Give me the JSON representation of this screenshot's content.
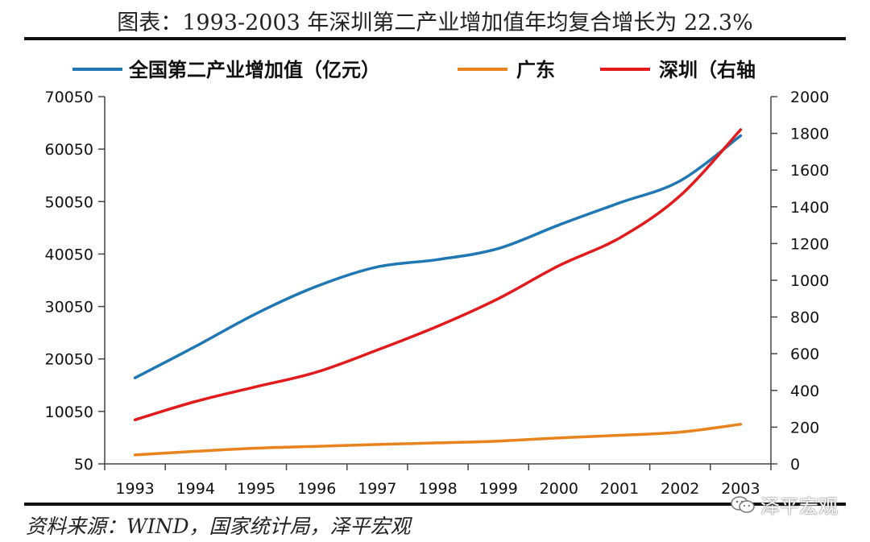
{
  "header": {
    "title": "图表：1993-2003 年深圳第二产业增加值年均复合增长为 22.3%"
  },
  "footer": {
    "source": "资料来源：WIND，国家统计局，泽平宏观",
    "watermark": "泽平宏观"
  },
  "colors": {
    "national": "#1f77b4",
    "guangdong": "#e8831e",
    "shenzhen": "#e31a1c"
  },
  "chart_data": {
    "type": "line",
    "title": "图表：1993-2003 年深圳第二产业增加值年均复合增长为 22.3%",
    "x": [
      "1993",
      "1994",
      "1995",
      "1996",
      "1997",
      "1998",
      "1999",
      "2000",
      "2001",
      "2002",
      "2003"
    ],
    "y_left": {
      "min": 50,
      "max": 70050,
      "ticks": [
        50,
        10050,
        20050,
        30050,
        40050,
        50050,
        60050,
        70050
      ]
    },
    "y_right": {
      "min": 0,
      "max": 2000,
      "ticks": [
        0,
        200,
        400,
        600,
        800,
        1000,
        1200,
        1400,
        1600,
        1800,
        2000
      ]
    },
    "series": [
      {
        "name": "全国第二产业增加值（亿元）",
        "axis": "left",
        "color": "#1f77b4",
        "values": [
          16450,
          22450,
          28700,
          33900,
          37600,
          39000,
          41100,
          45600,
          49800,
          54000,
          62600
        ]
      },
      {
        "name": "广东",
        "axis": "left",
        "color": "#e8831e",
        "values": [
          1750,
          2450,
          3050,
          3400,
          3750,
          4050,
          4400,
          5000,
          5500,
          6100,
          7600
        ]
      },
      {
        "name": "深圳（右轴",
        "axis": "right",
        "color": "#e31a1c",
        "values": [
          240,
          340,
          420,
          500,
          620,
          750,
          900,
          1080,
          1230,
          1460,
          1820
        ]
      }
    ]
  }
}
